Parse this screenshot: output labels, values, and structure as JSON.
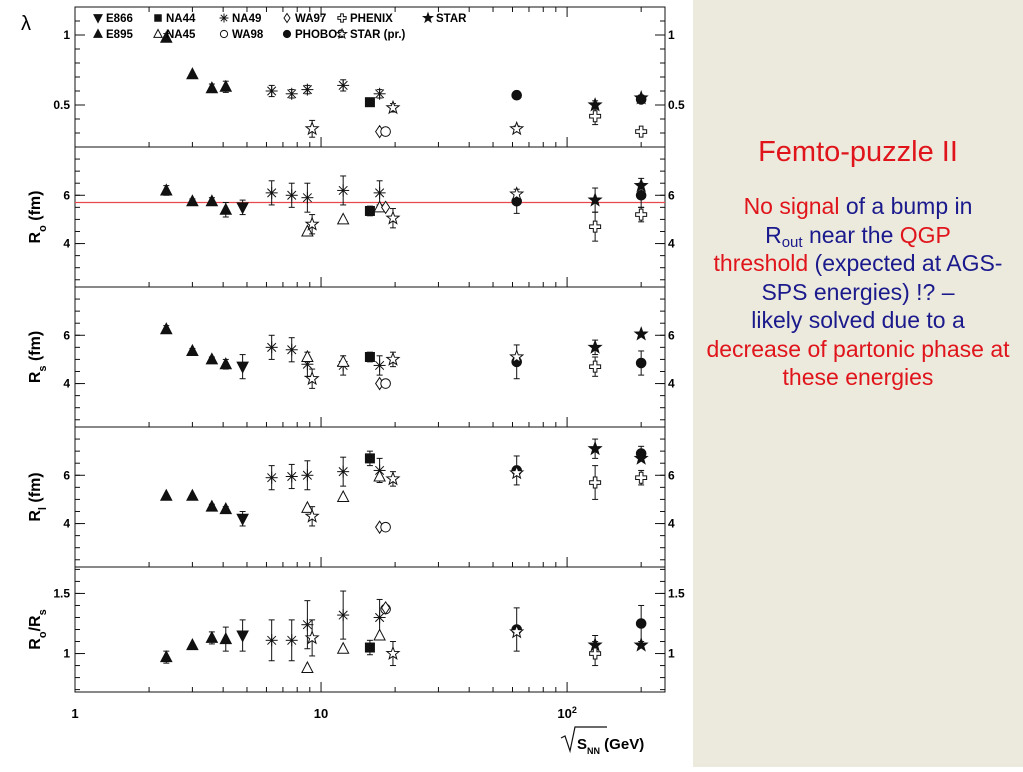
{
  "side": {
    "title": "Femto-puzzle II",
    "p1": "No signal",
    "p2": " of a bump in",
    "p3": "R",
    "p4": "out",
    "p5": " near the ",
    "p6": "QGP",
    "p7": "threshold",
    "p8": "  (expected at AGS-SPS  energies) !? –",
    "p9": "likely solved due to a",
    "p10": "decrease of partonic phase at these energies"
  },
  "colors": {
    "accent": "#e0151b",
    "text_blue": "#1a1a8c",
    "side_bg": "#ece9dd",
    "ref_line": "#e8484a"
  },
  "legend": [
    {
      "label": "E866",
      "marker": "tri-down-filled"
    },
    {
      "label": "NA44",
      "marker": "square-filled"
    },
    {
      "label": "NA49",
      "marker": "asterisk"
    },
    {
      "label": "WA97",
      "marker": "diamond-open"
    },
    {
      "label": "PHENIX",
      "marker": "cross-open"
    },
    {
      "label": "STAR",
      "marker": "star-filled"
    },
    {
      "label": "E895",
      "marker": "tri-up-filled"
    },
    {
      "label": "NA45",
      "marker": "tri-up-open"
    },
    {
      "label": "WA98",
      "marker": "circle-open"
    },
    {
      "label": "PHOBOS",
      "marker": "circle-filled"
    },
    {
      "label": "STAR (pr.)",
      "marker": "star-open"
    }
  ],
  "chart_data": {
    "type": "scatter",
    "x_axis": {
      "label": "SNN (GeV)",
      "label_symbol": "√",
      "scale": "log",
      "range": [
        1,
        250
      ],
      "ticks": [
        {
          "value": 1,
          "label": "1"
        },
        {
          "value": 10,
          "label": "10"
        },
        {
          "value": 100,
          "label": "10",
          "sup": "2"
        }
      ]
    },
    "panels": [
      {
        "ylabel": "λ",
        "ylim": [
          0.2,
          1.2
        ],
        "left_ticks": [
          {
            "v": 0.5,
            "label": "0.5"
          },
          {
            "v": 1,
            "label": "1"
          }
        ],
        "right_ticks": [
          {
            "v": 0.5,
            "label": "0.5"
          },
          {
            "v": 1,
            "label": "1"
          }
        ],
        "points": [
          {
            "x": 2.35,
            "y": 0.98,
            "e": 0.03,
            "m": "tri-up-filled"
          },
          {
            "x": 3.0,
            "y": 0.72,
            "e": 0.0,
            "m": "tri-up-filled"
          },
          {
            "x": 3.6,
            "y": 0.62,
            "e": 0.03,
            "m": "tri-up-filled"
          },
          {
            "x": 4.1,
            "y": 0.63,
            "e": 0.04,
            "m": "tri-up-filled"
          },
          {
            "x": 6.3,
            "y": 0.6,
            "e": 0.04,
            "m": "asterisk"
          },
          {
            "x": 7.6,
            "y": 0.58,
            "e": 0.03,
            "m": "asterisk"
          },
          {
            "x": 8.8,
            "y": 0.61,
            "e": 0.03,
            "m": "asterisk"
          },
          {
            "x": 12.3,
            "y": 0.64,
            "e": 0.04,
            "m": "asterisk"
          },
          {
            "x": 17.3,
            "y": 0.58,
            "e": 0.03,
            "m": "asterisk"
          },
          {
            "x": 9.2,
            "y": 0.33,
            "e": 0.06,
            "m": "star-open"
          },
          {
            "x": 15.8,
            "y": 0.52,
            "e": 0.0,
            "m": "square-filled"
          },
          {
            "x": 17.3,
            "y": 0.31,
            "e": 0.0,
            "m": "diamond-open"
          },
          {
            "x": 18.3,
            "y": 0.31,
            "e": 0.0,
            "m": "circle-open"
          },
          {
            "x": 19.6,
            "y": 0.48,
            "e": 0.03,
            "m": "star-open"
          },
          {
            "x": 62.4,
            "y": 0.57,
            "e": 0.0,
            "m": "circle-filled"
          },
          {
            "x": 62.4,
            "y": 0.33,
            "e": 0.02,
            "m": "star-open"
          },
          {
            "x": 130,
            "y": 0.5,
            "e": 0.03,
            "m": "star-filled"
          },
          {
            "x": 130,
            "y": 0.42,
            "e": 0.06,
            "m": "cross-open"
          },
          {
            "x": 200,
            "y": 0.55,
            "e": 0.02,
            "m": "star-filled"
          },
          {
            "x": 200,
            "y": 0.54,
            "e": 0.0,
            "m": "circle-filled"
          },
          {
            "x": 200,
            "y": 0.31,
            "e": 0.0,
            "m": "cross-open"
          }
        ]
      },
      {
        "ylabel": "R",
        "ylabel_sub": "o",
        "ylabel_unit": " (fm)",
        "ylim": [
          2.2,
          8.0
        ],
        "ref_line": 5.7,
        "left_ticks": [
          {
            "v": 4,
            "label": "4"
          },
          {
            "v": 6,
            "label": "6"
          }
        ],
        "right_ticks": [
          {
            "v": 4,
            "label": "4"
          },
          {
            "v": 6,
            "label": "6"
          }
        ],
        "points": [
          {
            "x": 2.35,
            "y": 6.2,
            "e": 0.2,
            "m": "tri-up-filled"
          },
          {
            "x": 3.0,
            "y": 5.75,
            "e": 0.1,
            "m": "tri-up-filled"
          },
          {
            "x": 3.6,
            "y": 5.75,
            "e": 0.15,
            "m": "tri-up-filled"
          },
          {
            "x": 4.1,
            "y": 5.4,
            "e": 0.3,
            "m": "tri-up-filled"
          },
          {
            "x": 4.8,
            "y": 5.5,
            "e": 0.3,
            "m": "tri-down-filled"
          },
          {
            "x": 6.3,
            "y": 6.1,
            "e": 0.5,
            "m": "asterisk"
          },
          {
            "x": 7.6,
            "y": 6.0,
            "e": 0.5,
            "m": "asterisk"
          },
          {
            "x": 8.8,
            "y": 5.9,
            "e": 0.6,
            "m": "asterisk"
          },
          {
            "x": 12.3,
            "y": 6.2,
            "e": 0.6,
            "m": "asterisk"
          },
          {
            "x": 17.3,
            "y": 6.1,
            "e": 0.5,
            "m": "asterisk"
          },
          {
            "x": 8.8,
            "y": 4.5,
            "e": 0.0,
            "m": "tri-up-open"
          },
          {
            "x": 9.2,
            "y": 4.8,
            "e": 0.4,
            "m": "star-open"
          },
          {
            "x": 12.3,
            "y": 5.0,
            "e": 0.0,
            "m": "tri-up-open"
          },
          {
            "x": 15.8,
            "y": 5.35,
            "e": 0.2,
            "m": "square-filled"
          },
          {
            "x": 17.3,
            "y": 5.5,
            "e": 0.0,
            "m": "tri-up-open"
          },
          {
            "x": 18.3,
            "y": 5.5,
            "e": 0.0,
            "m": "diamond-open"
          },
          {
            "x": 19.6,
            "y": 5.05,
            "e": 0.4,
            "m": "star-open"
          },
          {
            "x": 62.4,
            "y": 5.75,
            "e": 0.5,
            "m": "circle-filled"
          },
          {
            "x": 62.4,
            "y": 6.05,
            "e": 0.0,
            "m": "star-open"
          },
          {
            "x": 130,
            "y": 5.8,
            "e": 0.5,
            "m": "star-filled"
          },
          {
            "x": 130,
            "y": 4.7,
            "e": 0.6,
            "m": "cross-open"
          },
          {
            "x": 200,
            "y": 6.4,
            "e": 0.3,
            "m": "star-filled"
          },
          {
            "x": 200,
            "y": 6.0,
            "e": 0.5,
            "m": "circle-filled"
          },
          {
            "x": 200,
            "y": 5.2,
            "e": 0.3,
            "m": "cross-open"
          }
        ]
      },
      {
        "ylabel": "R",
        "ylabel_sub": "s",
        "ylabel_unit": " (fm)",
        "ylim": [
          2.2,
          8.0
        ],
        "left_ticks": [
          {
            "v": 4,
            "label": "4"
          },
          {
            "v": 6,
            "label": "6"
          }
        ],
        "right_ticks": [
          {
            "v": 4,
            "label": "4"
          },
          {
            "v": 6,
            "label": "6"
          }
        ],
        "points": [
          {
            "x": 2.35,
            "y": 6.25,
            "e": 0.15,
            "m": "tri-up-filled"
          },
          {
            "x": 3.0,
            "y": 5.35,
            "e": 0.1,
            "m": "tri-up-filled"
          },
          {
            "x": 3.6,
            "y": 5.0,
            "e": 0.1,
            "m": "tri-up-filled"
          },
          {
            "x": 4.1,
            "y": 4.8,
            "e": 0.2,
            "m": "tri-up-filled"
          },
          {
            "x": 4.8,
            "y": 4.7,
            "e": 0.5,
            "m": "tri-down-filled"
          },
          {
            "x": 6.3,
            "y": 5.5,
            "e": 0.5,
            "m": "asterisk"
          },
          {
            "x": 7.6,
            "y": 5.4,
            "e": 0.5,
            "m": "asterisk"
          },
          {
            "x": 8.8,
            "y": 4.8,
            "e": 0.5,
            "m": "asterisk"
          },
          {
            "x": 12.3,
            "y": 4.75,
            "e": 0.4,
            "m": "asterisk"
          },
          {
            "x": 17.3,
            "y": 4.75,
            "e": 0.4,
            "m": "asterisk"
          },
          {
            "x": 8.8,
            "y": 5.1,
            "e": 0.0,
            "m": "tri-up-open"
          },
          {
            "x": 9.2,
            "y": 4.2,
            "e": 0.4,
            "m": "star-open"
          },
          {
            "x": 12.3,
            "y": 4.9,
            "e": 0.0,
            "m": "tri-up-open"
          },
          {
            "x": 15.8,
            "y": 5.1,
            "e": 0.2,
            "m": "square-filled"
          },
          {
            "x": 17.3,
            "y": 4.0,
            "e": 0.0,
            "m": "diamond-open"
          },
          {
            "x": 18.3,
            "y": 4.0,
            "e": 0.0,
            "m": "circle-open"
          },
          {
            "x": 19.6,
            "y": 5.0,
            "e": 0.3,
            "m": "star-open"
          },
          {
            "x": 62.4,
            "y": 4.9,
            "e": 0.7,
            "m": "circle-filled"
          },
          {
            "x": 62.4,
            "y": 5.1,
            "e": 0.0,
            "m": "star-open"
          },
          {
            "x": 130,
            "y": 5.5,
            "e": 0.3,
            "m": "star-filled"
          },
          {
            "x": 130,
            "y": 4.7,
            "e": 0.4,
            "m": "cross-open"
          },
          {
            "x": 200,
            "y": 6.05,
            "e": 0.0,
            "m": "star-filled"
          },
          {
            "x": 200,
            "y": 4.85,
            "e": 0.5,
            "m": "circle-filled"
          }
        ]
      },
      {
        "ylabel": "R",
        "ylabel_sub": "l",
        "ylabel_unit": " (fm)",
        "ylim": [
          2.2,
          8.0
        ],
        "left_ticks": [
          {
            "v": 4,
            "label": "4"
          },
          {
            "v": 6,
            "label": "6"
          }
        ],
        "right_ticks": [
          {
            "v": 4,
            "label": "4"
          },
          {
            "v": 6,
            "label": "6"
          }
        ],
        "points": [
          {
            "x": 2.35,
            "y": 5.15,
            "e": 0.0,
            "m": "tri-up-filled"
          },
          {
            "x": 3.0,
            "y": 5.15,
            "e": 0.0,
            "m": "tri-up-filled"
          },
          {
            "x": 3.6,
            "y": 4.7,
            "e": 0.1,
            "m": "tri-up-filled"
          },
          {
            "x": 4.1,
            "y": 4.6,
            "e": 0.1,
            "m": "tri-up-filled"
          },
          {
            "x": 4.8,
            "y": 4.2,
            "e": 0.3,
            "m": "tri-down-filled"
          },
          {
            "x": 6.3,
            "y": 5.9,
            "e": 0.5,
            "m": "asterisk"
          },
          {
            "x": 7.6,
            "y": 5.95,
            "e": 0.5,
            "m": "asterisk"
          },
          {
            "x": 8.8,
            "y": 6.0,
            "e": 0.6,
            "m": "asterisk"
          },
          {
            "x": 12.3,
            "y": 6.15,
            "e": 0.6,
            "m": "asterisk"
          },
          {
            "x": 17.3,
            "y": 6.2,
            "e": 0.5,
            "m": "asterisk"
          },
          {
            "x": 8.8,
            "y": 4.65,
            "e": 0.0,
            "m": "tri-up-open"
          },
          {
            "x": 9.2,
            "y": 4.3,
            "e": 0.4,
            "m": "star-open"
          },
          {
            "x": 12.3,
            "y": 5.1,
            "e": 0.0,
            "m": "tri-up-open"
          },
          {
            "x": 15.8,
            "y": 6.7,
            "e": 0.3,
            "m": "square-filled"
          },
          {
            "x": 17.3,
            "y": 3.85,
            "e": 0.0,
            "m": "diamond-open"
          },
          {
            "x": 18.3,
            "y": 3.85,
            "e": 0.0,
            "m": "circle-open"
          },
          {
            "x": 17.3,
            "y": 5.95,
            "e": 0.0,
            "m": "tri-up-open"
          },
          {
            "x": 19.6,
            "y": 5.85,
            "e": 0.3,
            "m": "star-open"
          },
          {
            "x": 62.4,
            "y": 6.2,
            "e": 0.6,
            "m": "circle-filled"
          },
          {
            "x": 62.4,
            "y": 6.1,
            "e": 0.0,
            "m": "star-open"
          },
          {
            "x": 130,
            "y": 7.1,
            "e": 0.4,
            "m": "star-filled"
          },
          {
            "x": 130,
            "y": 5.7,
            "e": 0.7,
            "m": "cross-open"
          },
          {
            "x": 200,
            "y": 6.9,
            "e": 0.3,
            "m": "circle-filled"
          },
          {
            "x": 200,
            "y": 6.7,
            "e": 0.0,
            "m": "star-filled"
          },
          {
            "x": 200,
            "y": 5.9,
            "e": 0.3,
            "m": "cross-open"
          }
        ]
      },
      {
        "ylabel": "R",
        "ylabel_sub": "o",
        "ylabel_mid": "/R",
        "ylabel_sub2": "s",
        "ylim": [
          0.68,
          1.72
        ],
        "left_ticks": [
          {
            "v": 1,
            "label": "1"
          },
          {
            "v": 1.5,
            "label": "1.5"
          }
        ],
        "right_ticks": [
          {
            "v": 1,
            "label": "1"
          },
          {
            "v": 1.5,
            "label": "1.5"
          }
        ],
        "points": [
          {
            "x": 2.35,
            "y": 0.97,
            "e": 0.05,
            "m": "tri-up-filled"
          },
          {
            "x": 3.0,
            "y": 1.07,
            "e": 0.0,
            "m": "tri-up-filled"
          },
          {
            "x": 3.6,
            "y": 1.13,
            "e": 0.05,
            "m": "tri-up-filled"
          },
          {
            "x": 4.1,
            "y": 1.12,
            "e": 0.1,
            "m": "tri-up-filled"
          },
          {
            "x": 4.8,
            "y": 1.15,
            "e": 0.13,
            "m": "tri-down-filled"
          },
          {
            "x": 6.3,
            "y": 1.11,
            "e": 0.17,
            "m": "asterisk"
          },
          {
            "x": 7.6,
            "y": 1.11,
            "e": 0.17,
            "m": "asterisk"
          },
          {
            "x": 8.8,
            "y": 1.24,
            "e": 0.2,
            "m": "asterisk"
          },
          {
            "x": 12.3,
            "y": 1.32,
            "e": 0.2,
            "m": "asterisk"
          },
          {
            "x": 17.3,
            "y": 1.3,
            "e": 0.15,
            "m": "asterisk"
          },
          {
            "x": 8.8,
            "y": 0.88,
            "e": 0.0,
            "m": "tri-up-open"
          },
          {
            "x": 9.2,
            "y": 1.13,
            "e": 0.15,
            "m": "star-open"
          },
          {
            "x": 12.3,
            "y": 1.04,
            "e": 0.0,
            "m": "tri-up-open"
          },
          {
            "x": 15.8,
            "y": 1.05,
            "e": 0.06,
            "m": "square-filled"
          },
          {
            "x": 17.3,
            "y": 1.15,
            "e": 0.0,
            "m": "tri-up-open"
          },
          {
            "x": 18.3,
            "y": 1.37,
            "e": 0.0,
            "m": "circle-open"
          },
          {
            "x": 18.3,
            "y": 1.38,
            "e": 0.0,
            "m": "diamond-open"
          },
          {
            "x": 19.6,
            "y": 1.0,
            "e": 0.1,
            "m": "star-open"
          },
          {
            "x": 62.4,
            "y": 1.2,
            "e": 0.18,
            "m": "circle-filled"
          },
          {
            "x": 62.4,
            "y": 1.18,
            "e": 0.0,
            "m": "star-open"
          },
          {
            "x": 130,
            "y": 1.07,
            "e": 0.08,
            "m": "star-filled"
          },
          {
            "x": 130,
            "y": 1.0,
            "e": 0.1,
            "m": "cross-open"
          },
          {
            "x": 200,
            "y": 1.25,
            "e": 0.15,
            "m": "circle-filled"
          },
          {
            "x": 200,
            "y": 1.07,
            "e": 0.0,
            "m": "star-filled"
          }
        ]
      }
    ]
  }
}
